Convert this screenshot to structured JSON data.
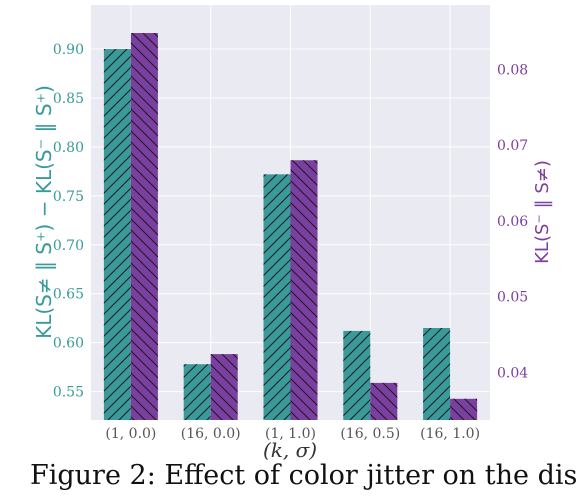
{
  "chart_data": {
    "type": "bar",
    "categories": [
      "(1, 0.0)",
      "(16, 0.0)",
      "(1, 1.0)",
      "(16, 0.5)",
      "(16, 1.0)"
    ],
    "xlabel": "(k, σ)",
    "series": [
      {
        "axis": "left",
        "color": "#3a9a9a",
        "hatch": "forward",
        "values": [
          0.9,
          0.578,
          0.772,
          0.612,
          0.615
        ]
      },
      {
        "axis": "right",
        "color": "#7a3fa0",
        "hatch": "backward",
        "values": [
          0.0848,
          0.0424,
          0.068,
          0.0386,
          0.0365
        ]
      }
    ],
    "left_axis": {
      "label": "KL(S≠ ‖ S⁺) − KL(S⁻ ‖ S⁺)",
      "range": [
        0.521,
        0.945
      ],
      "ticks": [
        "0.55",
        "0.60",
        "0.65",
        "0.70",
        "0.75",
        "0.80",
        "0.85",
        "0.90"
      ],
      "tick_values": [
        0.55,
        0.6,
        0.65,
        0.7,
        0.75,
        0.8,
        0.85,
        0.9
      ]
    },
    "right_axis": {
      "label": "KL(S⁻ ‖ S≠)",
      "range": [
        0.0337,
        0.0885
      ],
      "ticks": [
        "0.04",
        "0.05",
        "0.06",
        "0.07",
        "0.08"
      ],
      "tick_values": [
        0.04,
        0.05,
        0.06,
        0.07,
        0.08
      ]
    },
    "grid": true,
    "background": "#eaeaf2"
  },
  "caption": "Figure 2: Effect of color jitter on the dis"
}
